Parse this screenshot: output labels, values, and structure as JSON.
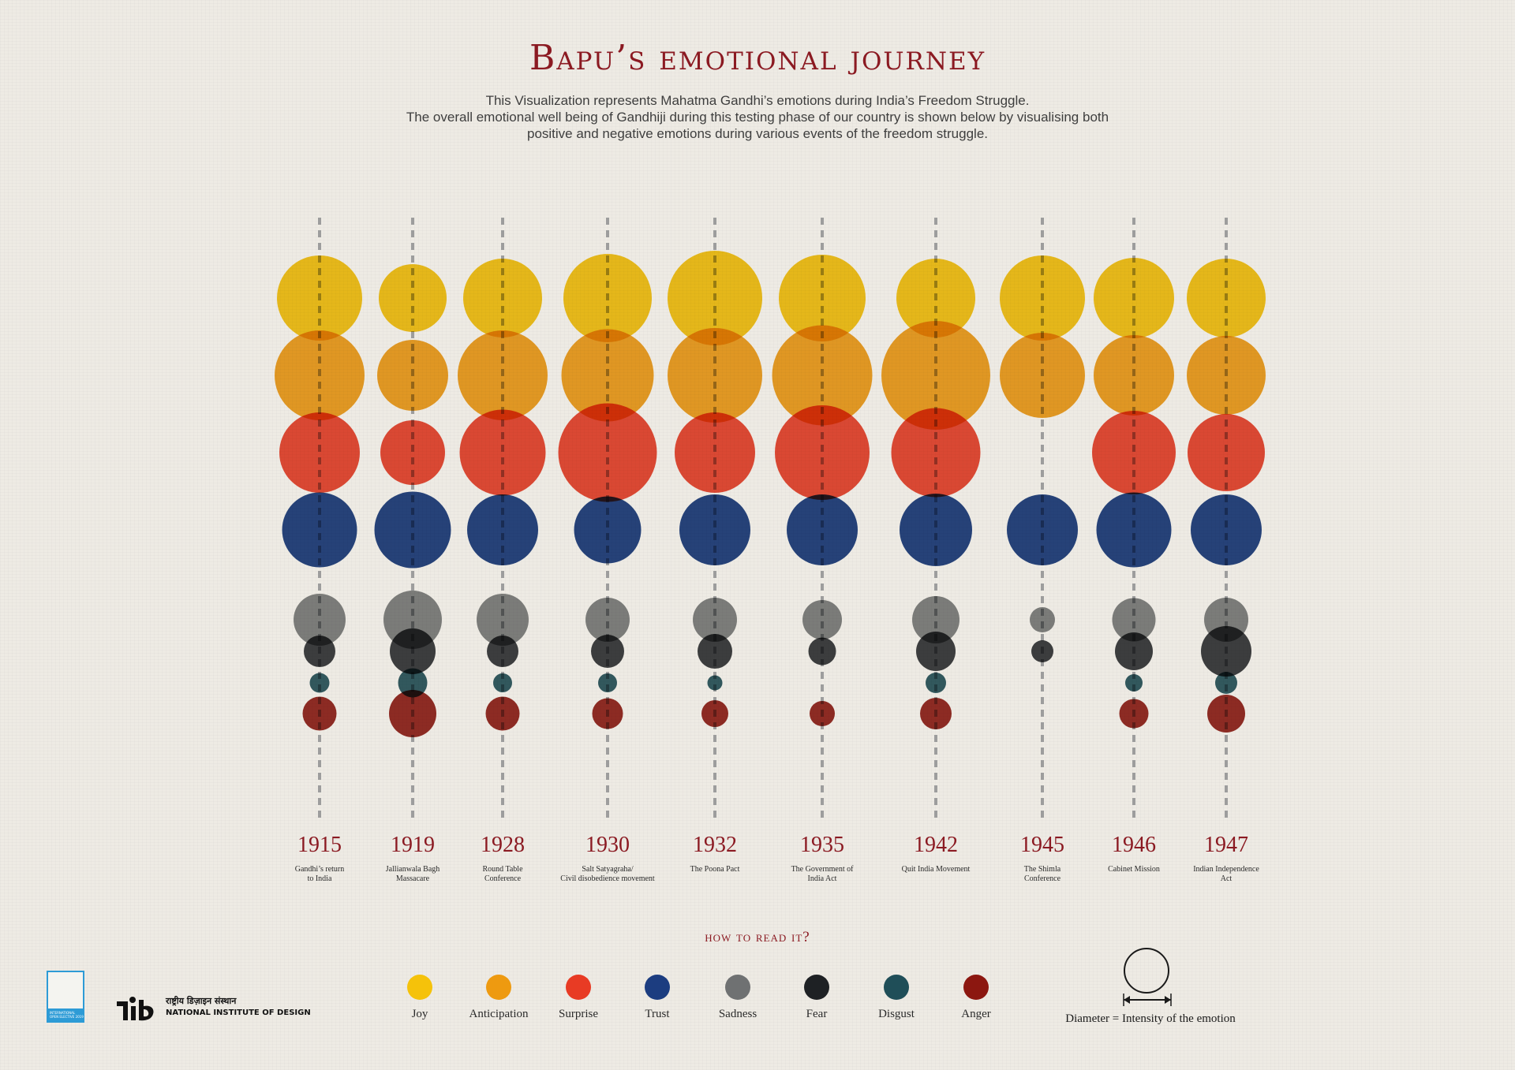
{
  "title": "Bapu’s emotional journey",
  "subtitle_lines": [
    "This Visualization represents Mahatma Gandhi’s emotions during India’s Freedom Struggle.",
    "The overall emotional well being of Gandhiji during this testing phase of our country is shown below by visualising both",
    "positive and negative emotions during various events of the freedom struggle."
  ],
  "colors": {
    "Joy": "#f5c20a",
    "Anticipation": "#ee9a10",
    "Surprise": "#e83b24",
    "Trust": "#1c3d80",
    "Sadness": "#6f7172",
    "Fear": "#1e2124",
    "Disgust": "#1f4e58",
    "Anger": "#8c1710",
    "title": "#8b1a22",
    "year": "#8b1a22",
    "guide_line": "#9d9d9d"
  },
  "chart_data": {
    "type": "scatter",
    "encoding": "diameter = intensity of the emotion",
    "series_order": [
      "Joy",
      "Anticipation",
      "Surprise",
      "Trust",
      "Sadness",
      "Fear",
      "Disgust",
      "Anger"
    ],
    "events": [
      {
        "year": "1915",
        "label": [
          "Gandhi’s return",
          "to India"
        ],
        "values": {
          "Joy": 108,
          "Anticipation": 114,
          "Surprise": 102,
          "Trust": 95,
          "Sadness": 66,
          "Fear": 40,
          "Disgust": 25,
          "Anger": 43
        }
      },
      {
        "year": "1919",
        "label": [
          "Jallianwala Bagh",
          "Massacare"
        ],
        "values": {
          "Joy": 86,
          "Anticipation": 90,
          "Surprise": 82,
          "Trust": 97,
          "Sadness": 74,
          "Fear": 58,
          "Disgust": 37,
          "Anger": 60
        }
      },
      {
        "year": "1928",
        "label": [
          "Round Table",
          "Conference"
        ],
        "values": {
          "Joy": 100,
          "Anticipation": 114,
          "Surprise": 109,
          "Trust": 90,
          "Sadness": 66,
          "Fear": 40,
          "Disgust": 24,
          "Anger": 43
        }
      },
      {
        "year": "1930",
        "label": [
          "Salt Satyagraha/",
          "Civil disobedience movement"
        ],
        "values": {
          "Joy": 112,
          "Anticipation": 117,
          "Surprise": 125,
          "Trust": 85,
          "Sadness": 56,
          "Fear": 42,
          "Disgust": 24,
          "Anger": 39
        }
      },
      {
        "year": "1932",
        "label": [
          "The Poona Pact"
        ],
        "values": {
          "Joy": 120,
          "Anticipation": 120,
          "Surprise": 102,
          "Trust": 90,
          "Sadness": 56,
          "Fear": 44,
          "Disgust": 19,
          "Anger": 34
        }
      },
      {
        "year": "1935",
        "label": [
          "The Government of",
          "India Act"
        ],
        "values": {
          "Joy": 110,
          "Anticipation": 127,
          "Surprise": 120,
          "Trust": 90,
          "Sadness": 50,
          "Fear": 35,
          "Disgust": 0,
          "Anger": 32
        }
      },
      {
        "year": "1942",
        "label": [
          "Quit India Movement"
        ],
        "values": {
          "Joy": 100,
          "Anticipation": 138,
          "Surprise": 113,
          "Trust": 92,
          "Sadness": 60,
          "Fear": 50,
          "Disgust": 26,
          "Anger": 40
        }
      },
      {
        "year": "1945",
        "label": [
          "The Shimla",
          "Conference"
        ],
        "values": {
          "Joy": 108,
          "Anticipation": 108,
          "Surprise": 0,
          "Trust": 90,
          "Sadness": 32,
          "Fear": 28,
          "Disgust": 0,
          "Anger": 0
        }
      },
      {
        "year": "1946",
        "label": [
          "Cabinet Mission"
        ],
        "values": {
          "Joy": 102,
          "Anticipation": 102,
          "Surprise": 106,
          "Trust": 95,
          "Sadness": 55,
          "Fear": 48,
          "Disgust": 22,
          "Anger": 37
        }
      },
      {
        "year": "1947",
        "label": [
          "Indian Independence",
          "Act"
        ],
        "values": {
          "Joy": 100,
          "Anticipation": 100,
          "Surprise": 98,
          "Trust": 90,
          "Sadness": 56,
          "Fear": 64,
          "Disgust": 28,
          "Anger": 48
        }
      }
    ]
  },
  "legend": {
    "heading": "how to read it?",
    "items": [
      {
        "label": "Joy",
        "icon": "joy-dot"
      },
      {
        "label": "Anticipation",
        "icon": "anticipation-dot"
      },
      {
        "label": "Surprise",
        "icon": "surprise-dot"
      },
      {
        "label": "Trust",
        "icon": "trust-dot"
      },
      {
        "label": "Sadness",
        "icon": "sadness-dot"
      },
      {
        "label": "Fear",
        "icon": "fear-dot"
      },
      {
        "label": "Disgust",
        "icon": "disgust-dot"
      },
      {
        "label": "Anger",
        "icon": "anger-dot"
      }
    ],
    "diameter_note": "Diameter = Intensity of the emotion"
  },
  "branding": {
    "institute_hindi": "राष्ट्रीय डिज़ाइन संस्थान",
    "institute_english": "NATIONAL INSTITUTE OF DESIGN",
    "badge_line1": "INTERNATIONAL",
    "badge_line2": "OPEN ELECTIVE 2019"
  }
}
